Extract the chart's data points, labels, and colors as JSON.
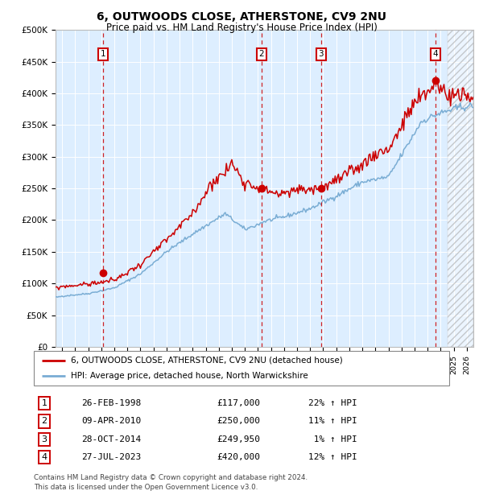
{
  "title": "6, OUTWOODS CLOSE, ATHERSTONE, CV9 2NU",
  "subtitle": "Price paid vs. HM Land Registry's House Price Index (HPI)",
  "ylim": [
    0,
    500000
  ],
  "yticks": [
    0,
    50000,
    100000,
    150000,
    200000,
    250000,
    300000,
    350000,
    400000,
    450000,
    500000
  ],
  "ytick_labels": [
    "£0",
    "£50K",
    "£100K",
    "£150K",
    "£200K",
    "£250K",
    "£300K",
    "£350K",
    "£400K",
    "£450K",
    "£500K"
  ],
  "xlim_start": 1994.5,
  "xlim_end": 2026.5,
  "hpi_color": "#7aadd4",
  "price_color": "#cc0000",
  "bg_color": "#ddeeff",
  "grid_color": "#ffffff",
  "sale_date_decimals": [
    1998.16,
    2010.27,
    2014.83,
    2023.58
  ],
  "sale_prices": [
    117000,
    250000,
    249950,
    420000
  ],
  "sale_labels": [
    "1",
    "2",
    "3",
    "4"
  ],
  "legend_price_label": "6, OUTWOODS CLOSE, ATHERSTONE, CV9 2NU (detached house)",
  "legend_hpi_label": "HPI: Average price, detached house, North Warwickshire",
  "table_data": [
    [
      "1",
      "26-FEB-1998",
      "£117,000",
      "22% ↑ HPI"
    ],
    [
      "2",
      "09-APR-2010",
      "£250,000",
      "11% ↑ HPI"
    ],
    [
      "3",
      "28-OCT-2014",
      "£249,950",
      " 1% ↑ HPI"
    ],
    [
      "4",
      "27-JUL-2023",
      "£420,000",
      "12% ↑ HPI"
    ]
  ],
  "footer": "Contains HM Land Registry data © Crown copyright and database right 2024.\nThis data is licensed under the Open Government Licence v3.0.",
  "hpi_key_points": {
    "1994.5": 78000,
    "1995.0": 80000,
    "1997.0": 84000,
    "1999.0": 93000,
    "2001.0": 115000,
    "2003.0": 150000,
    "2005.0": 178000,
    "2007.5": 210000,
    "2009.0": 185000,
    "2010.0": 193000,
    "2010.5": 198000,
    "2012.0": 205000,
    "2014.0": 218000,
    "2016.0": 238000,
    "2018.0": 260000,
    "2020.0": 268000,
    "2021.5": 320000,
    "2022.5": 355000,
    "2023.5": 365000,
    "2024.5": 372000,
    "2025.5": 378000,
    "2026.5": 380000
  },
  "price_key_points": {
    "1994.5": 93000,
    "1995.0": 95000,
    "1997.0": 99000,
    "1999.0": 105000,
    "2001.0": 130000,
    "2003.0": 168000,
    "2005.0": 210000,
    "2006.5": 260000,
    "2007.5": 275000,
    "2008.0": 290000,
    "2009.0": 260000,
    "2010.27": 250000,
    "2011.0": 245000,
    "2012.0": 240000,
    "2013.0": 248000,
    "2014.83": 249950,
    "2015.5": 258000,
    "2016.0": 262000,
    "2017.0": 273000,
    "2018.0": 288000,
    "2019.0": 305000,
    "2020.0": 312000,
    "2021.0": 348000,
    "2022.0": 385000,
    "2023.0": 400000,
    "2023.58": 420000,
    "2024.0": 410000,
    "2024.5": 395000,
    "2025.0": 400000,
    "2025.5": 395000,
    "2026.5": 392000
  },
  "future_start": 2024.5
}
